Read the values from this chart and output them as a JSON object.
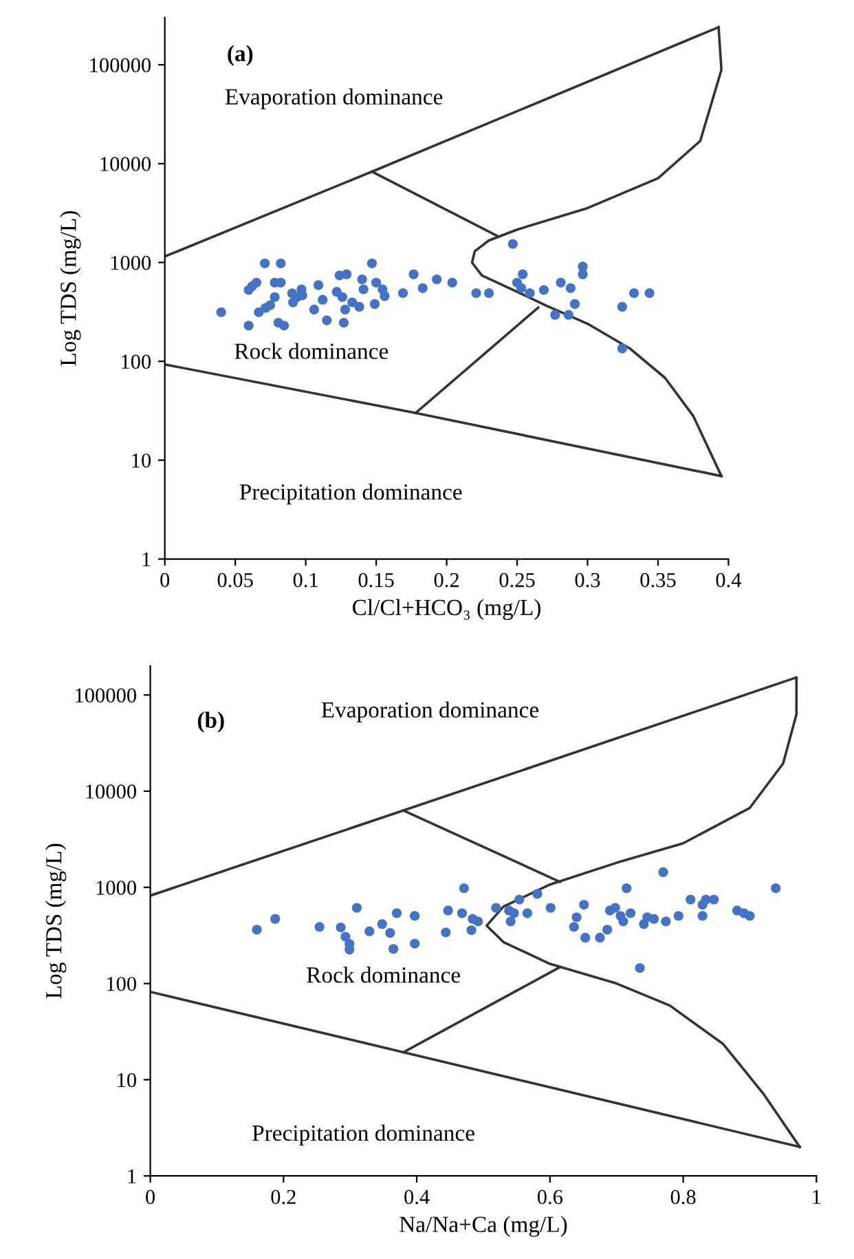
{
  "chart_data": [
    {
      "type": "scatter",
      "xlabel": "Cl/Cl+HCO₃ (mg/L)",
      "ylabel": "Log TDS (mg/L)",
      "log": "y",
      "xlim": [
        0,
        0.4
      ],
      "ylim": [
        1,
        300000
      ],
      "xticks": [
        0,
        0.05,
        0.1,
        0.15,
        0.2,
        0.25,
        0.3,
        0.35,
        0.4
      ],
      "yticks": [
        1,
        10,
        100,
        1000,
        10000,
        100000
      ],
      "grid": false,
      "legend": false,
      "annotations": [
        "(a)",
        "Evaporation dominance",
        "Rock dominance",
        "Precipitation dominance"
      ],
      "series": [
        {
          "type": "line",
          "color": "#333333",
          "x": [
            0,
            0.147,
            0.393
          ],
          "values": [
            1150,
            8300,
            240000
          ]
        },
        {
          "type": "line",
          "color": "#333333",
          "x": [
            0.147,
            0.237
          ],
          "values": [
            8300,
            1820
          ]
        },
        {
          "type": "line",
          "color": "#333333",
          "x": [
            0.393,
            0.395,
            0.38,
            0.35,
            0.3,
            0.25,
            0.23,
            0.22,
            0.218,
            0.225,
            0.25,
            0.27,
            0.3,
            0.33,
            0.355,
            0.375,
            0.395
          ],
          "values": [
            240000,
            89000,
            17000,
            7100,
            3550,
            2150,
            1670,
            1300,
            1000,
            740,
            505,
            370,
            240,
            135,
            68,
            28,
            6.9
          ]
        },
        {
          "type": "line",
          "color": "#333333",
          "x": [
            0,
            0.178,
            0.395
          ],
          "values": [
            93,
            30,
            6.9
          ]
        },
        {
          "type": "line",
          "color": "#333333",
          "x": [
            0.178,
            0.265
          ],
          "values": [
            30,
            350
          ]
        },
        {
          "marker": "circle",
          "color": "#4472c4",
          "x": [
            0.04,
            0.0595,
            0.0595,
            0.062,
            0.065,
            0.0667,
            0.071,
            0.0715,
            0.0748,
            0.078,
            0.078,
            0.0823,
            0.0823,
            0.0806,
            0.0846,
            0.0904,
            0.091,
            0.094,
            0.097,
            0.0976,
            0.106,
            0.109,
            0.112,
            0.115,
            0.122,
            0.124,
            0.126,
            0.127,
            0.128,
            0.129,
            0.133,
            0.138,
            0.14,
            0.141,
            0.147,
            0.149,
            0.15,
            0.1545,
            0.156,
            0.169,
            0.1766,
            0.183,
            0.193,
            0.204,
            0.221,
            0.23,
            0.247,
            0.25,
            0.254,
            0.253,
            0.259,
            0.269,
            0.277,
            0.281,
            0.2865,
            0.288,
            0.291,
            0.2966,
            0.2966,
            0.3246,
            0.3246,
            0.333,
            0.344
          ],
          "values": [
            314,
            230,
            527,
            575,
            625,
            314,
            980,
            347,
            370,
            447,
            625,
            980,
            625,
            246,
            230,
            488,
            395,
            447,
            535,
            466,
            334,
            590,
            420,
            260,
            505,
            740,
            447,
            246,
            334,
            760,
            395,
            356,
            675,
            535,
            980,
            380,
            625,
            535,
            457,
            490,
            760,
            550,
            675,
            625,
            490,
            490,
            1540,
            625,
            760,
            550,
            490,
            527,
            295,
            625,
            295,
            550,
            380,
            910,
            760,
            356,
            135,
            490,
            490
          ]
        }
      ]
    },
    {
      "type": "scatter",
      "xlabel": "Na/Na+Ca (mg/L)",
      "ylabel": "Log TDS (mg/L)",
      "log": "y",
      "xlim": [
        0,
        1
      ],
      "ylim": [
        1,
        200000
      ],
      "xticks": [
        0,
        0.2,
        0.4,
        0.6,
        0.8,
        1
      ],
      "yticks": [
        1,
        10,
        100,
        1000,
        10000,
        100000
      ],
      "grid": false,
      "legend": false,
      "annotations": [
        "(b)",
        "Evaporation dominance",
        "Rock dominance",
        "Precipitation dominance"
      ],
      "series": [
        {
          "type": "line",
          "color": "#333333",
          "x": [
            0,
            0.38,
            0.97
          ],
          "values": [
            820,
            6300,
            152000
          ]
        },
        {
          "type": "line",
          "color": "#333333",
          "x": [
            0.38,
            0.615
          ],
          "values": [
            6300,
            1140
          ]
        },
        {
          "type": "line",
          "color": "#333333",
          "x": [
            0.97,
            0.97,
            0.95,
            0.9,
            0.8,
            0.7,
            0.6,
            0.53,
            0.505,
            0.53,
            0.6,
            0.7,
            0.78,
            0.86,
            0.92,
            0.975
          ],
          "values": [
            152000,
            63000,
            19400,
            6700,
            2870,
            1800,
            1070,
            630,
            400,
            270,
            160,
            100,
            59,
            23.5,
            7.2,
            2
          ]
        },
        {
          "type": "line",
          "color": "#333333",
          "x": [
            0,
            0.38,
            0.975
          ],
          "values": [
            82,
            19.3,
            2
          ]
        },
        {
          "type": "line",
          "color": "#333333",
          "x": [
            0.38,
            0.615
          ],
          "values": [
            19.3,
            148
          ]
        },
        {
          "marker": "circle",
          "color": "#4472c4",
          "x": [
            0.16,
            0.1875,
            0.254,
            0.286,
            0.293,
            0.299,
            0.299,
            0.31,
            0.329,
            0.348,
            0.36,
            0.365,
            0.37,
            0.397,
            0.397,
            0.4436,
            0.447,
            0.471,
            0.468,
            0.482,
            0.484,
            0.492,
            0.519,
            0.5385,
            0.541,
            0.554,
            0.546,
            0.566,
            0.581,
            0.601,
            0.636,
            0.64,
            0.651,
            0.653,
            0.675,
            0.686,
            0.69,
            0.698,
            0.706,
            0.71,
            0.715,
            0.721,
            0.741,
            0.746,
            0.735,
            0.77,
            0.756,
            0.774,
            0.793,
            0.811,
            0.829,
            0.829,
            0.834,
            0.846,
            0.881,
            0.891,
            0.9,
            0.939
          ],
          "values": [
            363,
            470,
            388,
            383,
            307,
            258,
            225,
            613,
            349,
            415,
            336,
            229,
            539,
            505,
            260,
            340,
            575,
            980,
            539,
            359,
            470,
            443,
            613,
            575,
            443,
            747,
            539,
            539,
            855,
            613,
            388,
            489,
            660,
            300,
            300,
            363,
            575,
            613,
            505,
            443,
            980,
            539,
            415,
            489,
            145,
            1440,
            470,
            443,
            505,
            747,
            505,
            660,
            747,
            747,
            575,
            539,
            505,
            980
          ]
        }
      ]
    }
  ]
}
